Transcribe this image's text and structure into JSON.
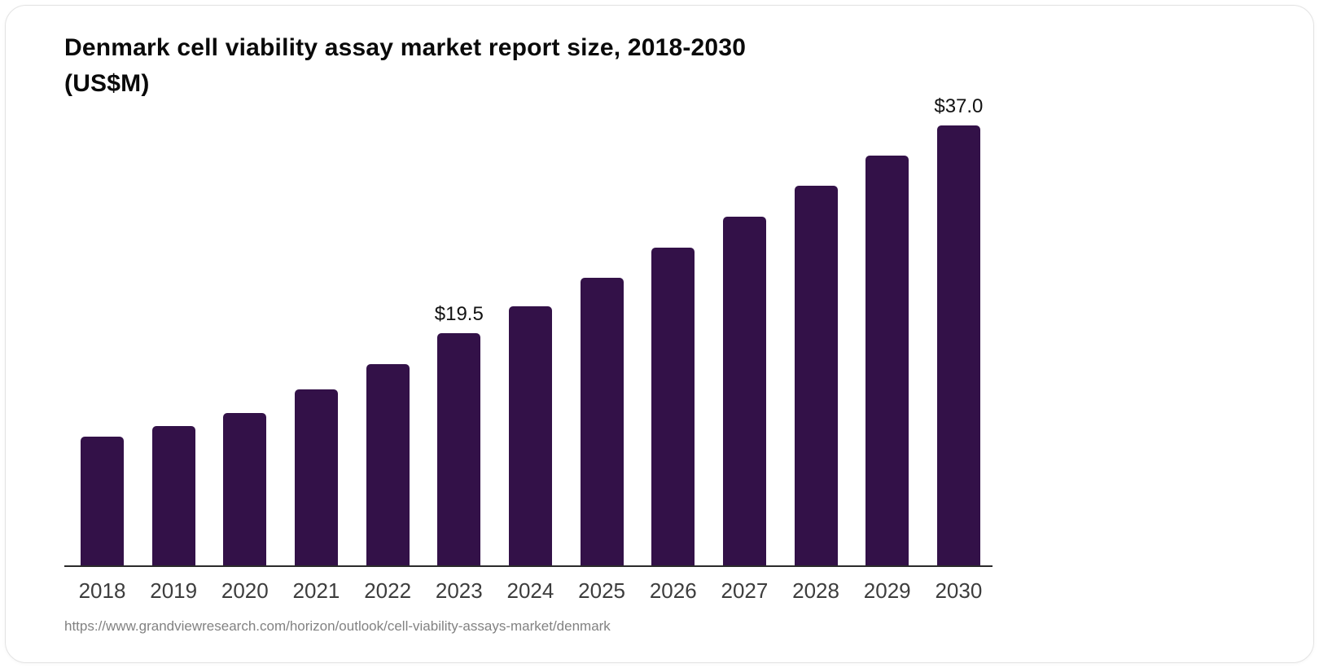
{
  "header": {
    "title_line1": "Denmark cell viability assay market report size, 2018-2030",
    "title_line2": "(US$M)"
  },
  "footer": {
    "source_url": "https://www.grandviewresearch.com/horizon/outlook/cell-viability-assays-market/denmark"
  },
  "colors": {
    "bar": "#331148",
    "axis_line": "#2b2b2b",
    "tick_label": "#3d3d3d",
    "title": "#0a0a0a",
    "data_label": "#121212",
    "source_url": "#828282"
  },
  "chart_data": {
    "type": "bar",
    "title": "Denmark cell viability assay market report size, 2018-2030 (US$M)",
    "xlabel": "",
    "ylabel": "US$M",
    "categories": [
      "2018",
      "2019",
      "2020",
      "2021",
      "2022",
      "2023",
      "2024",
      "2025",
      "2026",
      "2027",
      "2028",
      "2029",
      "2030"
    ],
    "values": [
      10.8,
      11.7,
      12.8,
      14.8,
      16.9,
      19.5,
      21.8,
      24.2,
      26.7,
      29.3,
      31.9,
      34.5,
      37.0
    ],
    "data_labels": [
      "",
      "",
      "",
      "",
      "",
      "$19.5",
      "",
      "",
      "",
      "",
      "",
      "",
      "$37.0"
    ],
    "bar_color": "#331148",
    "ylim": [
      0,
      40
    ],
    "grid": false,
    "legend_position": "none",
    "axis_shown": "x-only"
  }
}
